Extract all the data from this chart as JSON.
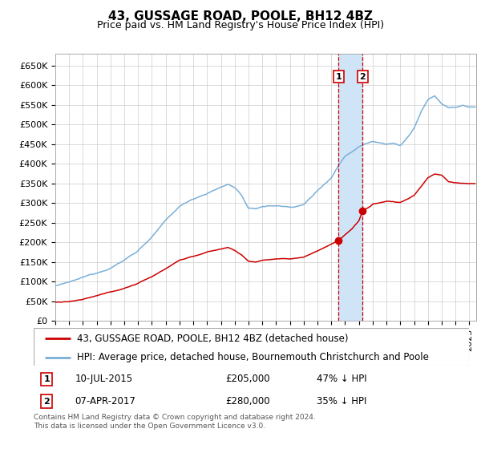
{
  "title": "43, GUSSAGE ROAD, POOLE, BH12 4BZ",
  "subtitle": "Price paid vs. HM Land Registry's House Price Index (HPI)",
  "ylim": [
    0,
    680000
  ],
  "yticks": [
    0,
    50000,
    100000,
    150000,
    200000,
    250000,
    300000,
    350000,
    400000,
    450000,
    500000,
    550000,
    600000,
    650000
  ],
  "ytick_labels": [
    "£0",
    "£50K",
    "£100K",
    "£150K",
    "£200K",
    "£250K",
    "£300K",
    "£350K",
    "£400K",
    "£450K",
    "£500K",
    "£550K",
    "£600K",
    "£650K"
  ],
  "xlim_start": 1995.0,
  "xlim_end": 2025.5,
  "transaction1_x": 2015.53,
  "transaction1_y": 205000,
  "transaction1_label": "10-JUL-2015",
  "transaction1_price": "£205,000",
  "transaction1_pct": "47% ↓ HPI",
  "transaction2_x": 2017.27,
  "transaction2_y": 280000,
  "transaction2_label": "07-APR-2017",
  "transaction2_price": "£280,000",
  "transaction2_pct": "35% ↓ HPI",
  "line1_label": "43, GUSSAGE ROAD, POOLE, BH12 4BZ (detached house)",
  "line2_label": "HPI: Average price, detached house, Bournemouth Christchurch and Poole",
  "line1_color": "#cc0000",
  "line2_color": "#7ab0d8",
  "span_color": "#d0e4f7",
  "background_color": "#ffffff",
  "grid_color": "#cccccc",
  "title_fontsize": 11,
  "subtitle_fontsize": 9,
  "tick_fontsize": 8,
  "legend_fontsize": 8.5,
  "footnote": "Contains HM Land Registry data © Crown copyright and database right 2024.\nThis data is licensed under the Open Government Licence v3.0."
}
